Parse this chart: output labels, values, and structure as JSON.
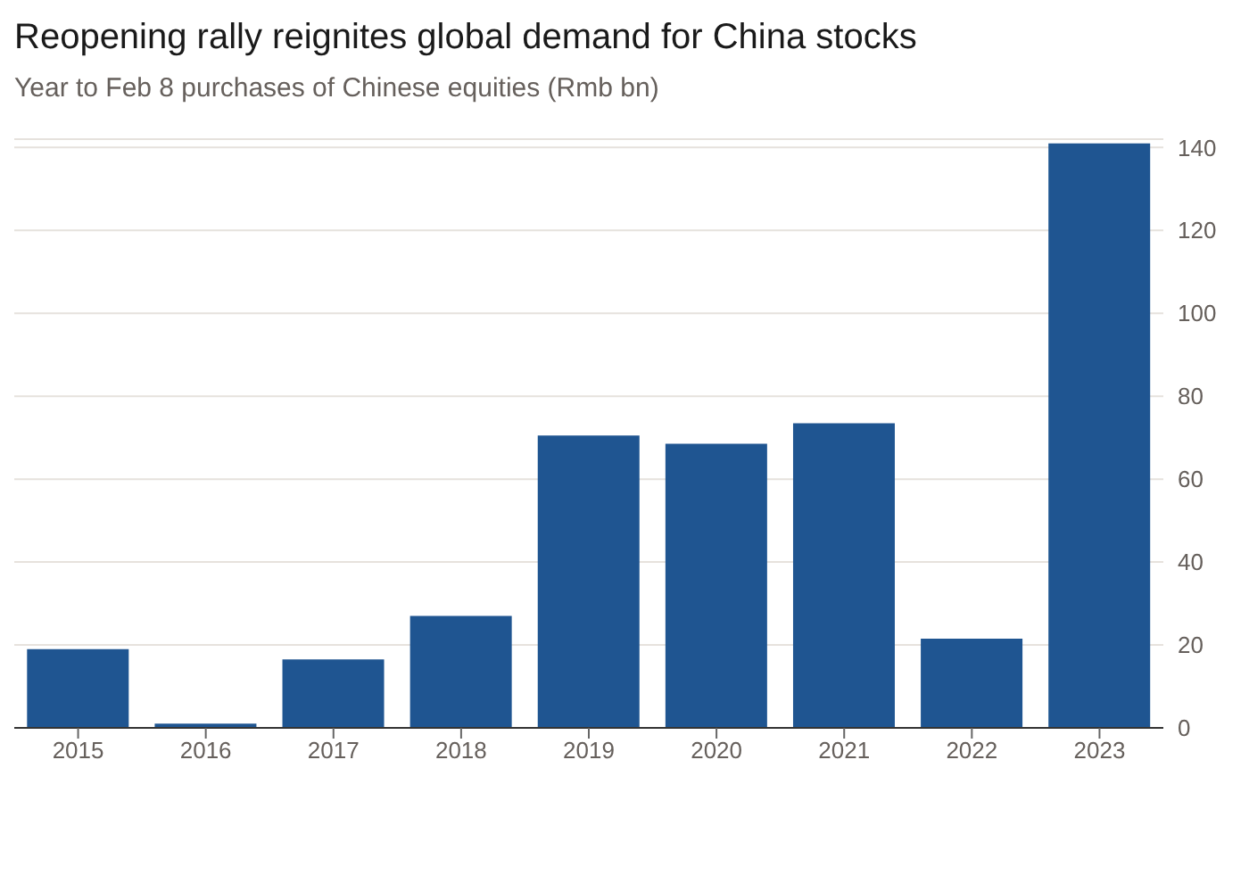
{
  "chart_data": {
    "type": "bar",
    "title": "Reopening rally reignites global demand for China stocks",
    "subtitle": "Year to Feb 8 purchases of Chinese equities (Rmb bn)",
    "categories": [
      "2015",
      "2016",
      "2017",
      "2018",
      "2019",
      "2020",
      "2021",
      "2022",
      "2023"
    ],
    "values": [
      19,
      1,
      16.5,
      27,
      70.5,
      68.5,
      73.5,
      21.5,
      141
    ],
    "color": "#1f5591",
    "ylim": [
      0,
      142
    ],
    "yticks": [
      0,
      20,
      40,
      60,
      80,
      100,
      120,
      140
    ],
    "grid": "y"
  }
}
